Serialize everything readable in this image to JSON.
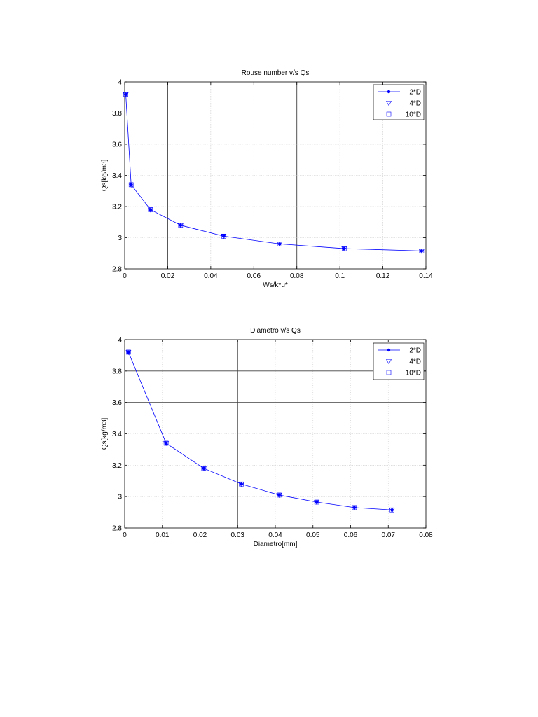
{
  "colors": {
    "series": "#0000ff",
    "axis": "#000000",
    "grid": "#c8c8c8",
    "grid_dark": "#404040"
  },
  "chart_data": [
    {
      "type": "line",
      "title": "Rouse number v/s Qs",
      "xlabel": "Ws/k*u*",
      "ylabel": "Qs[kg/m3]",
      "xlim": [
        0,
        0.14
      ],
      "ylim": [
        2.8,
        4
      ],
      "xticks": [
        "0",
        "0.02",
        "0.04",
        "0.06",
        "0.08",
        "0.1",
        "0.12",
        "0.14"
      ],
      "yticks": [
        "2.8",
        "3",
        "3.2",
        "3.4",
        "3.6",
        "3.8",
        "4"
      ],
      "grid": true,
      "legend_position": "top-right",
      "legend": [
        "2*D",
        "4*D",
        "10*D"
      ],
      "series": [
        {
          "name": "2*D",
          "marker": "dot",
          "x": [
            0.0005,
            0.003,
            0.012,
            0.026,
            0.046,
            0.072,
            0.102,
            0.138
          ],
          "y": [
            3.92,
            3.34,
            3.18,
            3.08,
            3.01,
            2.96,
            2.93,
            2.915
          ]
        },
        {
          "name": "4*D",
          "marker": "triangle-down",
          "x": [
            0.0005,
            0.003,
            0.012,
            0.026,
            0.046,
            0.072,
            0.102,
            0.138
          ],
          "y": [
            3.92,
            3.34,
            3.18,
            3.08,
            3.01,
            2.96,
            2.93,
            2.915
          ]
        },
        {
          "name": "10*D",
          "marker": "square",
          "x": [
            0.0005,
            0.003,
            0.012,
            0.026,
            0.046,
            0.072,
            0.102,
            0.138
          ],
          "y": [
            3.92,
            3.34,
            3.18,
            3.08,
            3.01,
            2.96,
            2.93,
            2.915
          ]
        }
      ]
    },
    {
      "type": "line",
      "title": "Diametro v/s Qs",
      "xlabel": "Diametro[mm]",
      "ylabel": "Qs[kg/m3]",
      "xlim": [
        0,
        0.08
      ],
      "ylim": [
        2.8,
        4
      ],
      "xticks": [
        "0",
        "0.01",
        "0.02",
        "0.03",
        "0.04",
        "0.05",
        "0.06",
        "0.07",
        "0.08"
      ],
      "yticks": [
        "2.8",
        "3",
        "3.2",
        "3.4",
        "3.6",
        "3.8",
        "4"
      ],
      "grid": true,
      "legend_position": "top-right",
      "legend": [
        "2*D",
        "4*D",
        "10*D"
      ],
      "series": [
        {
          "name": "2*D",
          "marker": "dot",
          "x": [
            0.001,
            0.011,
            0.021,
            0.031,
            0.041,
            0.051,
            0.061,
            0.071
          ],
          "y": [
            3.92,
            3.34,
            3.18,
            3.08,
            3.01,
            2.965,
            2.93,
            2.915
          ]
        },
        {
          "name": "4*D",
          "marker": "triangle-down",
          "x": [
            0.001,
            0.011,
            0.021,
            0.031,
            0.041,
            0.051,
            0.061,
            0.071
          ],
          "y": [
            3.92,
            3.34,
            3.18,
            3.08,
            3.01,
            2.965,
            2.93,
            2.915
          ]
        },
        {
          "name": "10*D",
          "marker": "square",
          "x": [
            0.001,
            0.011,
            0.021,
            0.031,
            0.041,
            0.051,
            0.061,
            0.071
          ],
          "y": [
            3.92,
            3.34,
            3.18,
            3.08,
            3.01,
            2.965,
            2.93,
            2.915
          ]
        }
      ]
    }
  ]
}
